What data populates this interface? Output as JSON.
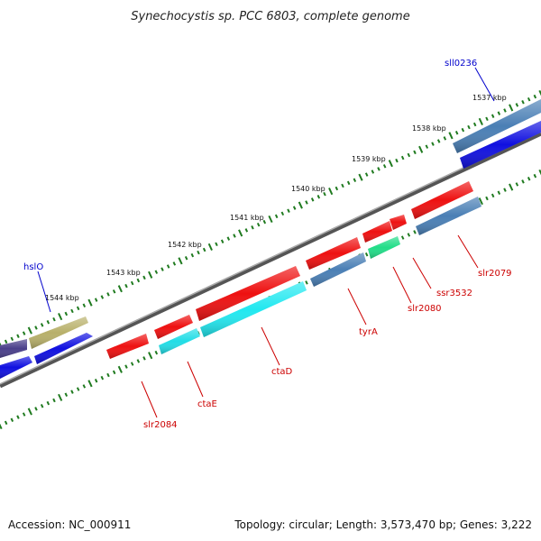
{
  "title": "Synechocystis sp. PCC 6803, complete genome",
  "footer": {
    "accession": "Accession: NC_000911",
    "topology": "Topology: circular; Length: 3,573,470 bp; Genes: 3,222"
  },
  "colors": {
    "background": "#ffffff",
    "backbone": "#777777",
    "ticks": "#1f7a1f",
    "reverse_label": "#cc0000",
    "forward_label": "#0000cc"
  },
  "kbp_labels": [
    "1537 kbp",
    "1538 kbp",
    "1539 kbp",
    "1540 kbp",
    "1541 kbp",
    "1542 kbp",
    "1543 kbp",
    "1544 kbp"
  ],
  "genes": [
    {
      "label": "",
      "strand": "forward",
      "color": "#4a3f8a"
    },
    {
      "label": "hslO",
      "strand": "forward",
      "color": "#b8b06a"
    },
    {
      "label": "",
      "strand": "forward",
      "color": "#1010e0"
    },
    {
      "label": "",
      "strand": "forward",
      "color": "#1010e0"
    },
    {
      "label": "sll0236",
      "strand": "forward",
      "color": "#4a7fb5"
    },
    {
      "label": "",
      "strand": "forward",
      "color": "#1010e0"
    },
    {
      "label": "slr2084",
      "strand": "reverse",
      "color": "#ee1111"
    },
    {
      "label": "",
      "strand": "reverse",
      "color": "#ee1111"
    },
    {
      "label": "ctaE",
      "strand": "reverse",
      "color": "#22dde6"
    },
    {
      "label": "",
      "strand": "reverse",
      "color": "#ee1111"
    },
    {
      "label": "ctaD",
      "strand": "reverse",
      "color": "#22e8f0"
    },
    {
      "label": "",
      "strand": "reverse",
      "color": "#ee1111"
    },
    {
      "label": "tyrA",
      "strand": "reverse",
      "color": "#4a7fb5"
    },
    {
      "label": "",
      "strand": "reverse",
      "color": "#ee1111"
    },
    {
      "label": "slr2080",
      "strand": "reverse",
      "color": "#22dd88"
    },
    {
      "label": "ssr3532",
      "strand": "reverse",
      "color": "#ee1111"
    },
    {
      "label": "",
      "strand": "reverse",
      "color": "#ee1111"
    },
    {
      "label": "slr2079",
      "strand": "reverse",
      "color": "#4a7fb5"
    }
  ]
}
